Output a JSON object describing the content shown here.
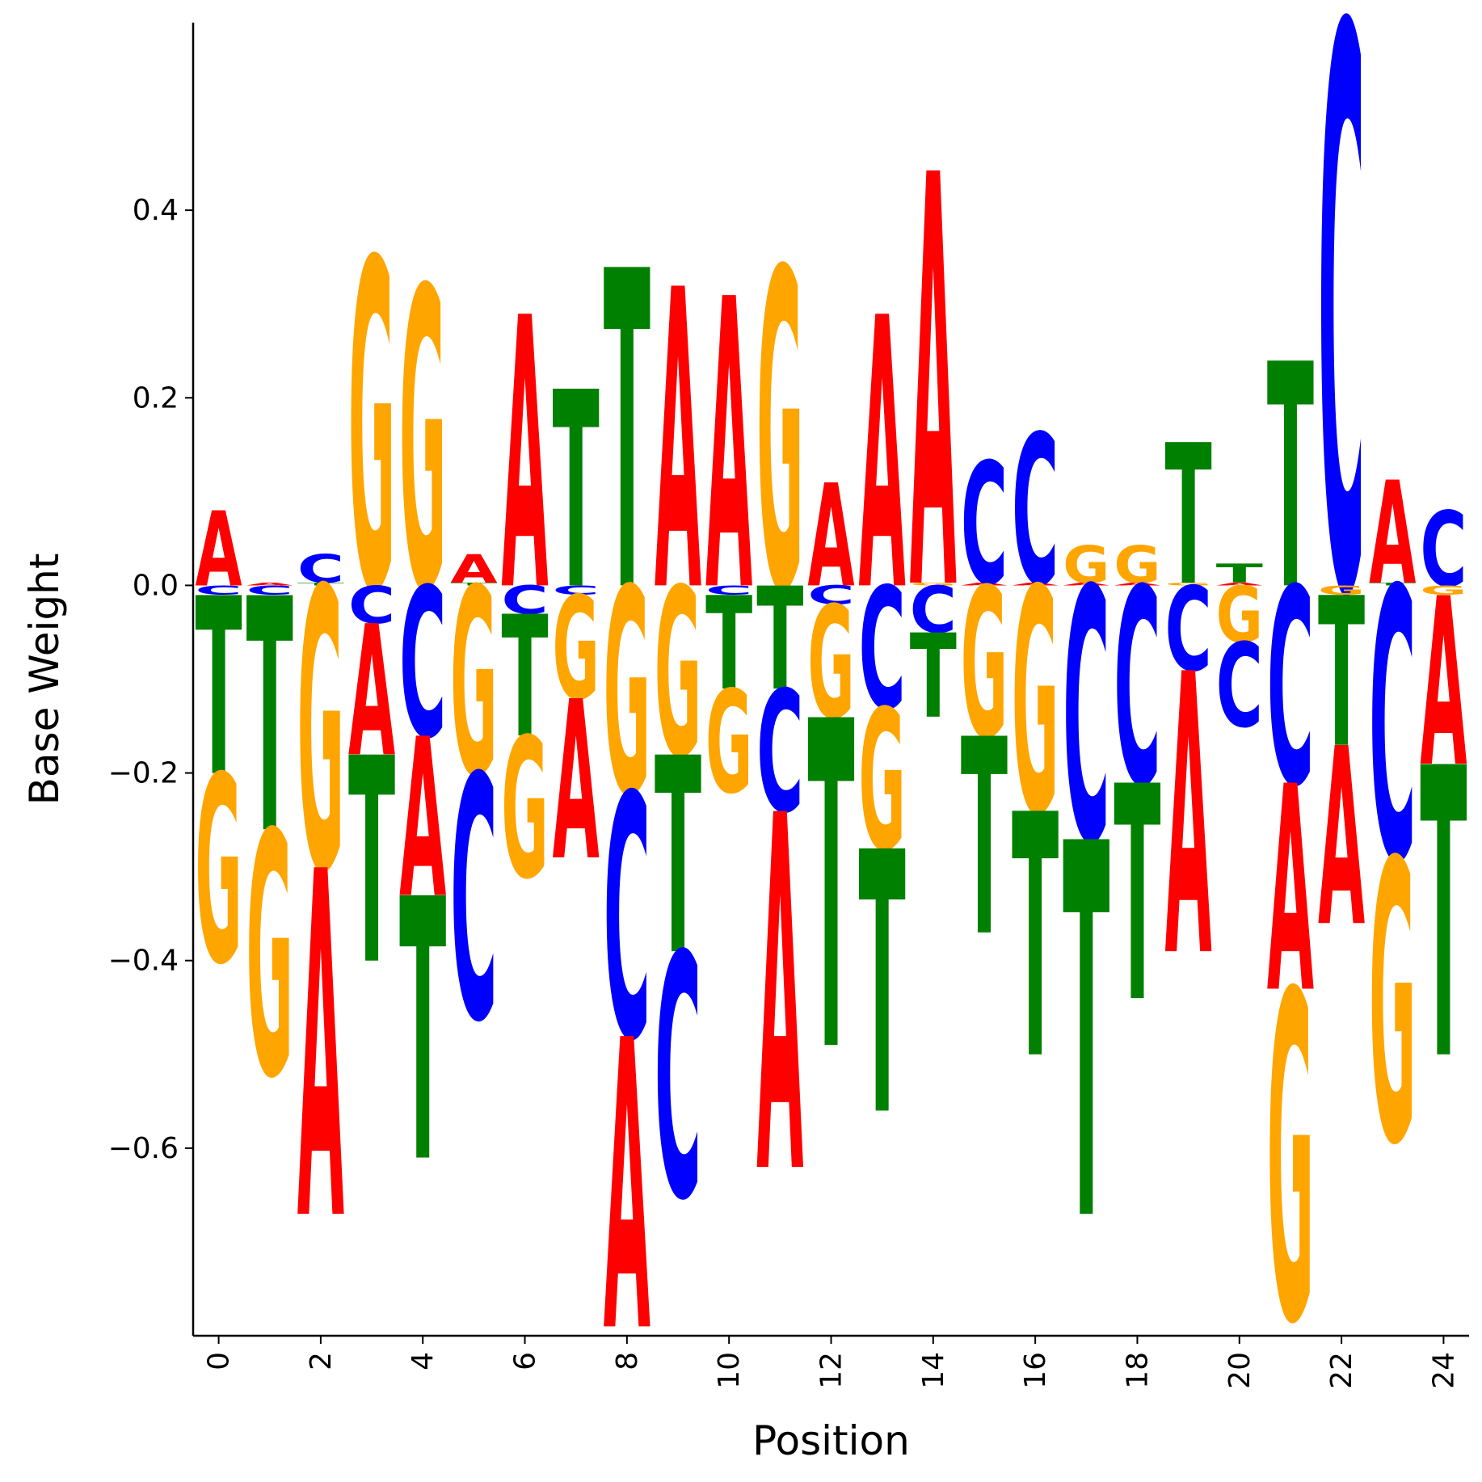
{
  "chart_data": {
    "type": "sequence-logo",
    "xlabel": "Position",
    "ylabel": "Base Weight",
    "xlim": [
      -0.5,
      24.5
    ],
    "ylim": [
      -0.8,
      0.6
    ],
    "x_ticks": [
      0,
      2,
      4,
      6,
      8,
      10,
      12,
      14,
      16,
      18,
      20,
      22,
      24
    ],
    "y_ticks": [
      -0.6,
      -0.4,
      -0.2,
      0.0,
      0.2,
      0.4
    ],
    "y_tick_labels": [
      "−0.6",
      "−0.4",
      "−0.2",
      "0.0",
      "0.2",
      "0.4"
    ],
    "colors": {
      "A": "#ff0000",
      "C": "#0000ff",
      "G": "#ffa500",
      "T": "#008000"
    },
    "positions": [
      {
        "pos": 0,
        "A": 0.08,
        "C": -0.01,
        "G": -0.2,
        "T": -0.19
      },
      {
        "pos": 1,
        "A": 0.003,
        "C": -0.01,
        "G": -0.26,
        "T": -0.25
      },
      {
        "pos": 2,
        "A": -0.37,
        "C": 0.03,
        "G": -0.3,
        "T": 0.003
      },
      {
        "pos": 3,
        "A": -0.14,
        "C": -0.04,
        "G": 0.35,
        "T": -0.22
      },
      {
        "pos": 4,
        "A": -0.17,
        "C": -0.16,
        "G": 0.32,
        "T": -0.28
      },
      {
        "pos": 5,
        "A": 0.03,
        "C": -0.26,
        "G": -0.2,
        "T": 0.003
      },
      {
        "pos": 6,
        "A": 0.29,
        "C": -0.03,
        "G": -0.15,
        "T": -0.13
      },
      {
        "pos": 7,
        "A": -0.17,
        "C": -0.01,
        "G": -0.11,
        "T": 0.21
      },
      {
        "pos": 8,
        "A": -0.31,
        "C": -0.26,
        "G": -0.22,
        "T": 0.34
      },
      {
        "pos": 9,
        "A": 0.32,
        "C": -0.26,
        "G": -0.18,
        "T": -0.21
      },
      {
        "pos": 10,
        "A": 0.31,
        "C": -0.01,
        "G": -0.11,
        "T": -0.1
      },
      {
        "pos": 11,
        "A": -0.38,
        "C": -0.13,
        "G": 0.34,
        "T": -0.11
      },
      {
        "pos": 12,
        "A": 0.11,
        "C": -0.02,
        "G": -0.12,
        "T": -0.35
      },
      {
        "pos": 13,
        "A": 0.29,
        "C": -0.13,
        "G": -0.15,
        "T": -0.28
      },
      {
        "pos": 14,
        "A": 0.44,
        "C": -0.05,
        "G": 0.003,
        "T": -0.09
      },
      {
        "pos": 15,
        "A": 0.003,
        "C": 0.13,
        "G": -0.16,
        "T": -0.21
      },
      {
        "pos": 16,
        "A": 0.003,
        "C": 0.16,
        "G": -0.24,
        "T": -0.26
      },
      {
        "pos": 17,
        "A": 0.003,
        "C": -0.27,
        "G": 0.04,
        "T": -0.4
      },
      {
        "pos": 18,
        "A": 0.003,
        "C": -0.21,
        "G": 0.04,
        "T": -0.23
      },
      {
        "pos": 19,
        "A": -0.3,
        "C": -0.09,
        "G": 0.003,
        "T": 0.15
      },
      {
        "pos": 20,
        "A": 0.003,
        "C": -0.09,
        "G": -0.06,
        "T": 0.02
      },
      {
        "pos": 21,
        "A": -0.22,
        "C": -0.21,
        "G": -0.35,
        "T": 0.24
      },
      {
        "pos": 22,
        "A": -0.19,
        "C": 0.6,
        "G": -0.01,
        "T": -0.16
      },
      {
        "pos": 23,
        "A": 0.11,
        "C": -0.29,
        "G": -0.3,
        "T": 0.003
      },
      {
        "pos": 24,
        "A": -0.18,
        "C": 0.08,
        "G": -0.01,
        "T": -0.31
      }
    ]
  }
}
